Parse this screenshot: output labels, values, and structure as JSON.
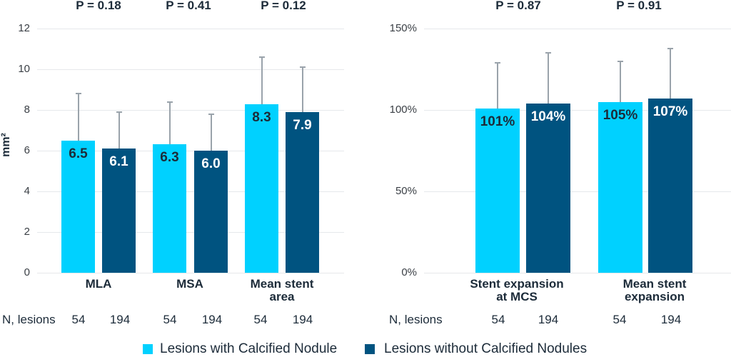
{
  "colors": {
    "with_nodule": "#00D1FF",
    "without_nodule": "#005380",
    "error_bar": "#9AA3AB",
    "gridline": "#E6E8EB",
    "text": "#1C2B39"
  },
  "chart_data": [
    {
      "type": "bar",
      "title": "",
      "xlabel": "",
      "ylabel": "mm²",
      "ylim": [
        0,
        12
      ],
      "yticks": [
        0,
        2,
        4,
        6,
        8,
        10,
        12
      ],
      "ytick_labels": [
        "0",
        "2",
        "4",
        "6",
        "8",
        "10",
        "12"
      ],
      "grid": true,
      "legend_position": "bottom",
      "categories": [
        "MLA",
        "MSA",
        "Mean stent area"
      ],
      "category_labels": [
        "MLA",
        "MSA",
        "Mean stent\narea"
      ],
      "p_values": [
        "P = 0.18",
        "P = 0.41",
        "P = 0.12"
      ],
      "n_label": "N, lesions",
      "series": [
        {
          "name": "Lesions with Calcified Nodule",
          "color": "#00D1FF",
          "values": [
            6.5,
            6.3,
            8.3
          ],
          "value_labels": [
            "6.5",
            "6.3",
            "8.3"
          ],
          "sd": [
            2.3,
            2.1,
            2.3
          ],
          "n": [
            54,
            54,
            54
          ]
        },
        {
          "name": "Lesions without Calcified Nodules",
          "color": "#005380",
          "values": [
            6.1,
            6.0,
            7.9
          ],
          "value_labels": [
            "6.1",
            "6.0",
            "7.9"
          ],
          "sd": [
            1.8,
            1.8,
            2.2
          ],
          "n": [
            194,
            194,
            194
          ]
        }
      ]
    },
    {
      "type": "bar",
      "title": "",
      "xlabel": "",
      "ylabel": "",
      "ylim": [
        0,
        150
      ],
      "yticks": [
        0,
        50,
        100,
        150
      ],
      "ytick_labels": [
        "0%",
        "50%",
        "100%",
        "150%"
      ],
      "grid": true,
      "legend_position": "bottom",
      "categories": [
        "Stent expansion at MCS",
        "Mean stent expansion"
      ],
      "category_labels": [
        "Stent expansion\nat MCS",
        "Mean stent\nexpansion"
      ],
      "p_values": [
        "P = 0.87",
        "P = 0.91"
      ],
      "n_label": "N, lesions",
      "series": [
        {
          "name": "Lesions with Calcified Nodule",
          "color": "#00D1FF",
          "values": [
            101,
            105
          ],
          "value_labels": [
            "101%",
            "105%"
          ],
          "sd": [
            28,
            25
          ],
          "n": [
            54,
            54
          ]
        },
        {
          "name": "Lesions without Calcified Nodules",
          "color": "#005380",
          "values": [
            104,
            107
          ],
          "value_labels": [
            "104%",
            "107%"
          ],
          "sd": [
            31,
            31
          ],
          "n": [
            194,
            194
          ]
        }
      ]
    }
  ],
  "legend": {
    "items": [
      {
        "label": "Lesions with Calcified Nodule",
        "color": "#00D1FF"
      },
      {
        "label": "Lesions without Calcified Nodules",
        "color": "#005380"
      }
    ]
  }
}
